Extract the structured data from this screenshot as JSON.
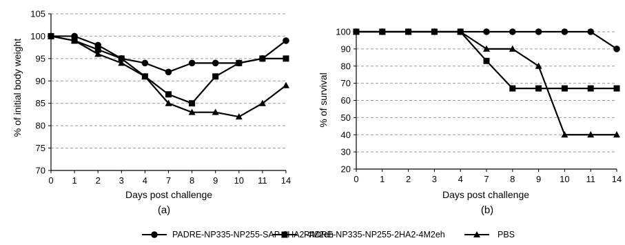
{
  "chart_data": [
    {
      "type": "line",
      "panel_label": "(a)",
      "xlabel": "Days post challenge",
      "ylabel": "% of initial body weight",
      "categories": [
        "0",
        "1",
        "2",
        "3",
        "4",
        "7",
        "8",
        "9",
        "10",
        "11",
        "14"
      ],
      "ylim": [
        70,
        105
      ],
      "yticks": [
        70,
        75,
        80,
        85,
        90,
        95,
        100,
        105
      ],
      "grid": "horizontal dashed",
      "series": [
        {
          "name": "PADRE-NP335-NP255-SAP-2HA2-4M2eh",
          "marker": "circle",
          "values": [
            100,
            100,
            98,
            95,
            94,
            92,
            94,
            94,
            94,
            95,
            99
          ]
        },
        {
          "name": "PADRE-NP335-NP255-2HA2-4M2eh",
          "marker": "square",
          "values": [
            100,
            99,
            97,
            95,
            91,
            87,
            85,
            91,
            94,
            95,
            95
          ]
        },
        {
          "name": "PBS",
          "marker": "triangle",
          "values": [
            100,
            99,
            96,
            94,
            91,
            85,
            83,
            83,
            82,
            85,
            89
          ]
        }
      ]
    },
    {
      "type": "line",
      "panel_label": "(b)",
      "xlabel": "Days post challenge",
      "ylabel": "% of survival",
      "categories": [
        "0",
        "1",
        "2",
        "3",
        "4",
        "7",
        "8",
        "9",
        "10",
        "11",
        "14"
      ],
      "ylim": [
        20,
        100
      ],
      "yticks": [
        20,
        30,
        40,
        50,
        60,
        70,
        80,
        90,
        100
      ],
      "grid": "horizontal dashed",
      "series": [
        {
          "name": "PADRE-NP335-NP255-SAP-2HA2-4M2eh",
          "marker": "circle",
          "values": [
            100,
            100,
            100,
            100,
            100,
            100,
            100,
            100,
            100,
            100,
            90
          ]
        },
        {
          "name": "PADRE-NP335-NP255-2HA2-4M2eh",
          "marker": "square",
          "values": [
            100,
            100,
            100,
            100,
            100,
            83,
            67,
            67,
            67,
            67,
            67
          ]
        },
        {
          "name": "PBS",
          "marker": "triangle",
          "values": [
            100,
            100,
            100,
            100,
            100,
            90,
            90,
            80,
            40,
            40,
            40
          ]
        }
      ]
    }
  ],
  "legend": {
    "placement": "bottom",
    "items": [
      {
        "label": "PADRE-NP335-NP255-SAP-2HA2-4M2eh",
        "marker": "circle"
      },
      {
        "label": "PADRE-NP335-NP255-2HA2-4M2eh",
        "marker": "square"
      },
      {
        "label": "PBS",
        "marker": "triangle"
      }
    ]
  }
}
